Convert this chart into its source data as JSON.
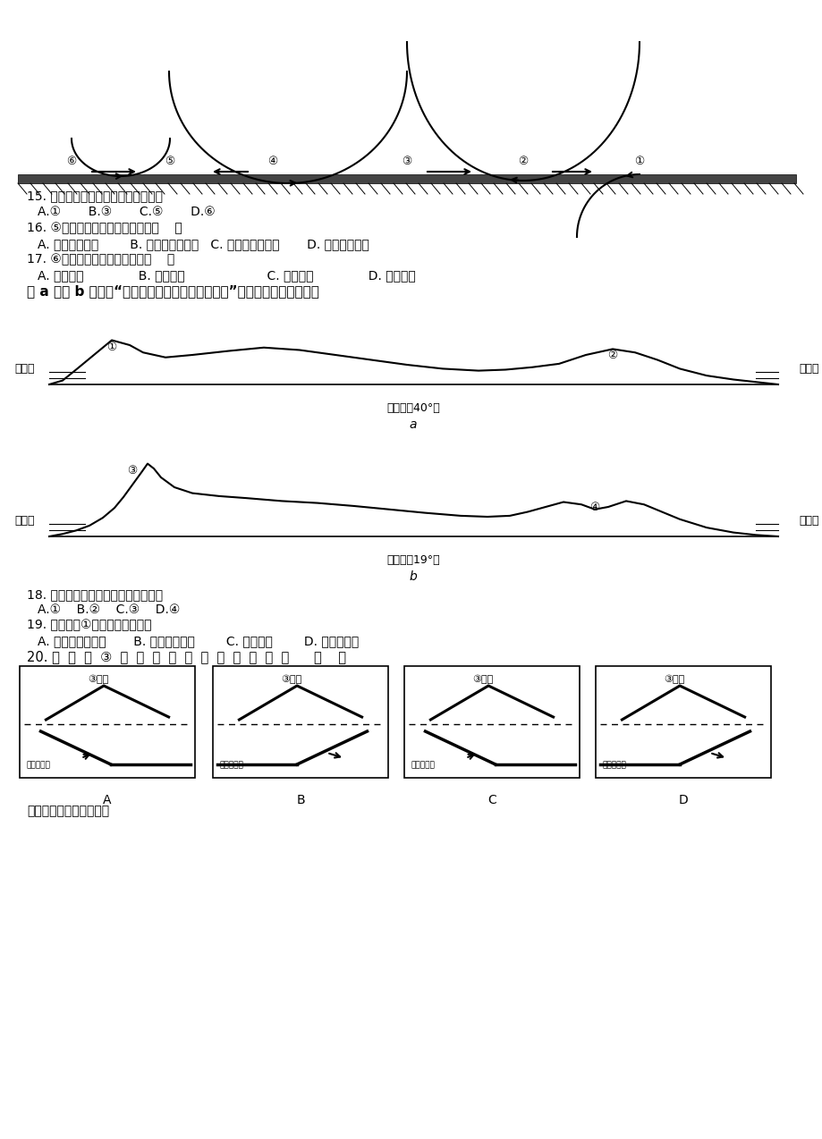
{
  "bg_color": "#ffffff",
  "text_color": "#000000",
  "q15": "15. 图中表示副热带高气压带的是（）",
  "q15_opts": "A.①       B.③       C.⑤       D.⑥",
  "q16": "16. ⑤表示的近地面气压带名称为（    ）",
  "q16_opts": "A. 赤道低气压带        B. 副热带高气压带   C. 副极地低气压带       D. 极地高气压带",
  "q17": "17. ⑥表示的近地面风的名称是（    ）",
  "q17_opts": "A. 东北信风              B. 东南信风                     C. 盛行西风              D. 极地东风",
  "fig_intro": "图 a 、图 b 分别是“某两个大洲大陆的地形剖面图”，读图完成下列各题。",
  "q18": "18. 图中表示安第斯山脉的数字是（）",
  "q18_opts": "A.①    B.②    C.③    D.④",
  "q19": "19. 流经山脉①西侧的洋流是（）",
  "q19_opts": "A. 加利福尼亚寒流       B. 北太平洋暖流        C. 秘鲁寒流        D. 本格拉寒流",
  "q20": "20. 能  反  映  ③  山  脉  形  成  的  是  下  列  哪  幅  图      （    ）",
  "q21_intro": "读下图，完成下列小题。",
  "abcd_labels": [
    "A",
    "B",
    "C",
    "D"
  ],
  "plate_labels_AB": "太平洋板块",
  "plate_labels_CD": "南极洲板块",
  "num_labels": [
    "⑥",
    "⑤",
    "④",
    "③",
    "②",
    "①"
  ],
  "fig_a_lat": "（沿北纬40°）",
  "fig_b_lat": "（沿南纬19°）",
  "pacific": "太平洋",
  "atlantic": "大西洋",
  "mtn_label": "③山脉"
}
